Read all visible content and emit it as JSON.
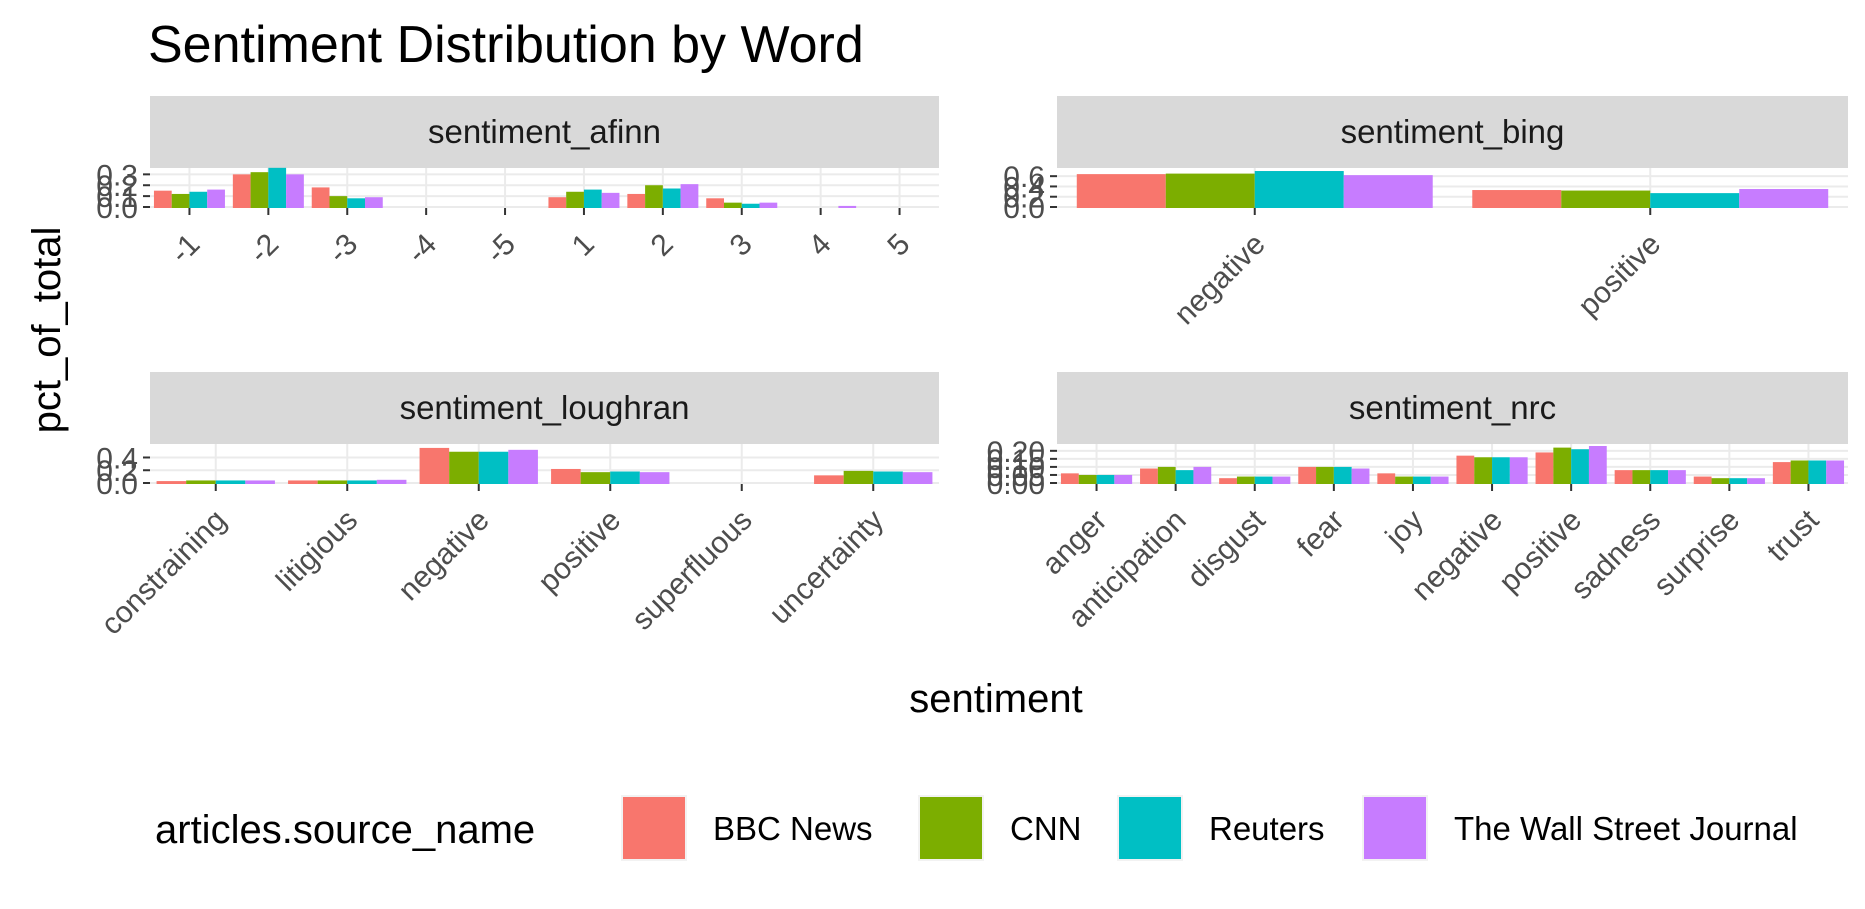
{
  "chart_data": {
    "type": "bar",
    "title": "Sentiment Distribution by Word",
    "xlabel": "sentiment",
    "ylabel": "pct_of_total",
    "grid": true,
    "legend": {
      "title": "articles.source_name",
      "position": "bottom",
      "entries": [
        "BBC News",
        "CNN",
        "Reuters",
        "The Wall Street Journal"
      ],
      "colors": [
        "#F8766D",
        "#7CAE00",
        "#00BFC4",
        "#C77CFF"
      ]
    },
    "panels": [
      {
        "name": "sentiment_afinn",
        "categories": [
          "-1",
          "-2",
          "-3",
          "-4",
          "-5",
          "1",
          "2",
          "3",
          "4",
          "5"
        ],
        "ylim": [
          0,
          0.34
        ],
        "yticks": [
          "0.0",
          "0.1",
          "0.2",
          "0.3"
        ],
        "series": [
          {
            "name": "BBC News",
            "values": [
              0.15,
              0.3,
              0.18,
              0,
              0,
              0.09,
              0.12,
              0.08,
              0,
              0
            ]
          },
          {
            "name": "CNN",
            "values": [
              0.12,
              0.32,
              0.1,
              0,
              0,
              0.14,
              0.2,
              0.04,
              0,
              0
            ]
          },
          {
            "name": "Reuters",
            "values": [
              0.14,
              0.36,
              0.08,
              0,
              0,
              0.16,
              0.17,
              0.03,
              0,
              0
            ]
          },
          {
            "name": "The Wall Street Journal",
            "values": [
              0.16,
              0.3,
              0.09,
              0,
              0,
              0.13,
              0.21,
              0.04,
              0.01,
              0
            ]
          }
        ]
      },
      {
        "name": "sentiment_bing",
        "categories": [
          "negative",
          "positive"
        ],
        "ylim": [
          0,
          0.72
        ],
        "yticks": [
          "0.0",
          "0.2",
          "0.4",
          "0.6"
        ],
        "series": [
          {
            "name": "BBC News",
            "values": [
              0.64,
              0.33
            ]
          },
          {
            "name": "CNN",
            "values": [
              0.65,
              0.32
            ]
          },
          {
            "name": "Reuters",
            "values": [
              0.7,
              0.27
            ]
          },
          {
            "name": "The Wall Street Journal",
            "values": [
              0.62,
              0.35
            ]
          }
        ]
      },
      {
        "name": "sentiment_loughran",
        "categories": [
          "constraining",
          "litigious",
          "negative",
          "positive",
          "superfluous",
          "uncertainty"
        ],
        "ylim": [
          0,
          0.58
        ],
        "yticks": [
          "0.0",
          "0.2",
          "0.4"
        ],
        "series": [
          {
            "name": "BBC News",
            "values": [
              0.03,
              0.04,
              0.55,
              0.22,
              0,
              0.12
            ]
          },
          {
            "name": "CNN",
            "values": [
              0.04,
              0.04,
              0.49,
              0.17,
              0,
              0.19
            ]
          },
          {
            "name": "Reuters",
            "values": [
              0.04,
              0.04,
              0.49,
              0.18,
              0,
              0.18
            ]
          },
          {
            "name": "The Wall Street Journal",
            "values": [
              0.04,
              0.05,
              0.52,
              0.17,
              0,
              0.17
            ]
          }
        ]
      },
      {
        "name": "sentiment_nrc",
        "categories": [
          "anger",
          "anticipation",
          "disgust",
          "fear",
          "joy",
          "negative",
          "positive",
          "sadness",
          "surprise",
          "trust"
        ],
        "ylim": [
          0,
          0.23
        ],
        "yticks": [
          "0.00",
          "0.05",
          "0.10",
          "0.15",
          "0.20"
        ],
        "series": [
          {
            "name": "BBC News",
            "values": [
              0.06,
              0.09,
              0.03,
              0.1,
              0.06,
              0.17,
              0.19,
              0.08,
              0.04,
              0.13
            ]
          },
          {
            "name": "CNN",
            "values": [
              0.05,
              0.1,
              0.04,
              0.1,
              0.04,
              0.16,
              0.22,
              0.08,
              0.03,
              0.14
            ]
          },
          {
            "name": "Reuters",
            "values": [
              0.05,
              0.08,
              0.04,
              0.1,
              0.04,
              0.16,
              0.21,
              0.08,
              0.03,
              0.14
            ]
          },
          {
            "name": "The Wall Street Journal",
            "values": [
              0.05,
              0.1,
              0.04,
              0.09,
              0.04,
              0.16,
              0.23,
              0.08,
              0.03,
              0.14
            ]
          }
        ]
      }
    ]
  }
}
